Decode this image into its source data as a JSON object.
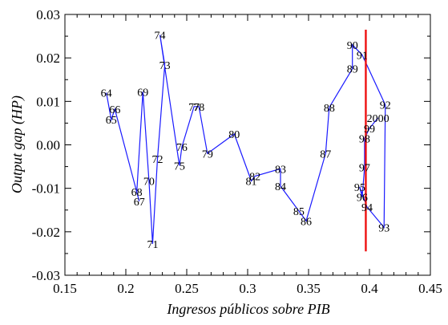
{
  "chart_data": {
    "type": "line",
    "title": "",
    "xlabel": "Ingresos públicos sobre PIB",
    "ylabel": "Output gap (HP)",
    "xlim": [
      0.15,
      0.45
    ],
    "ylim": [
      -0.03,
      0.03
    ],
    "x_ticks": [
      0.15,
      0.2,
      0.25,
      0.3,
      0.35,
      0.4,
      0.45
    ],
    "x_tick_labels": [
      "0.15",
      "0.2",
      "0.25",
      "0.3",
      "0.35",
      "0.4",
      "0.45"
    ],
    "y_ticks": [
      -0.03,
      -0.02,
      -0.01,
      0.0,
      0.01,
      0.02,
      0.03
    ],
    "y_tick_labels": [
      "-0.03",
      "-0.02",
      "-0.01",
      "0.00",
      "0.01",
      "0.02",
      "0.03"
    ],
    "grid": false,
    "series": [
      {
        "color": "#1a1aff",
        "points": [
          {
            "label": "64",
            "x": 0.184,
            "y": 0.012
          },
          {
            "label": "65",
            "x": 0.188,
            "y": 0.0058
          },
          {
            "label": "66",
            "x": 0.191,
            "y": 0.0082
          },
          {
            "label": "67",
            "x": 0.211,
            "y": -0.013
          },
          {
            "label": "68",
            "x": 0.209,
            "y": -0.0108
          },
          {
            "label": "69",
            "x": 0.214,
            "y": 0.0122
          },
          {
            "label": "70",
            "x": 0.219,
            "y": -0.0083
          },
          {
            "label": "71",
            "x": 0.222,
            "y": -0.0228
          },
          {
            "label": "72",
            "x": 0.226,
            "y": -0.0032
          },
          {
            "label": "73",
            "x": 0.232,
            "y": 0.0184
          },
          {
            "label": "74",
            "x": 0.228,
            "y": 0.0253
          },
          {
            "label": "75",
            "x": 0.244,
            "y": -0.0048
          },
          {
            "label": "76",
            "x": 0.246,
            "y": -0.0005
          },
          {
            "label": "77",
            "x": 0.256,
            "y": 0.0088
          },
          {
            "label": "78",
            "x": 0.26,
            "y": 0.0088
          },
          {
            "label": "79",
            "x": 0.267,
            "y": -0.002
          },
          {
            "label": "80",
            "x": 0.289,
            "y": 0.0025
          },
          {
            "label": "81",
            "x": 0.303,
            "y": -0.0083
          },
          {
            "label": "82",
            "x": 0.306,
            "y": -0.0072
          },
          {
            "label": "83",
            "x": 0.327,
            "y": -0.0055
          },
          {
            "label": "84",
            "x": 0.327,
            "y": -0.0095
          },
          {
            "label": "85",
            "x": 0.342,
            "y": -0.0152
          },
          {
            "label": "86",
            "x": 0.348,
            "y": -0.0175
          },
          {
            "label": "87",
            "x": 0.364,
            "y": -0.002
          },
          {
            "label": "88",
            "x": 0.367,
            "y": 0.0086
          },
          {
            "label": "89",
            "x": 0.386,
            "y": 0.0175
          },
          {
            "label": "90",
            "x": 0.386,
            "y": 0.023
          },
          {
            "label": "91",
            "x": 0.394,
            "y": 0.0207
          },
          {
            "label": "92",
            "x": 0.413,
            "y": 0.0092
          },
          {
            "label": "93",
            "x": 0.412,
            "y": -0.019
          },
          {
            "label": "94",
            "x": 0.398,
            "y": -0.0143
          },
          {
            "label": "95",
            "x": 0.392,
            "y": -0.0097
          },
          {
            "label": "96",
            "x": 0.394,
            "y": -0.012
          },
          {
            "label": "97",
            "x": 0.396,
            "y": -0.0052
          },
          {
            "label": "98",
            "x": 0.396,
            "y": 0.0015
          },
          {
            "label": "99",
            "x": 0.4,
            "y": 0.0038
          },
          {
            "label": "2000",
            "x": 0.407,
            "y": 0.0062
          }
        ]
      }
    ],
    "reference_line": {
      "x": 0.397,
      "y_from": -0.0245,
      "y_to": 0.0265,
      "color": "#ee1111"
    }
  }
}
